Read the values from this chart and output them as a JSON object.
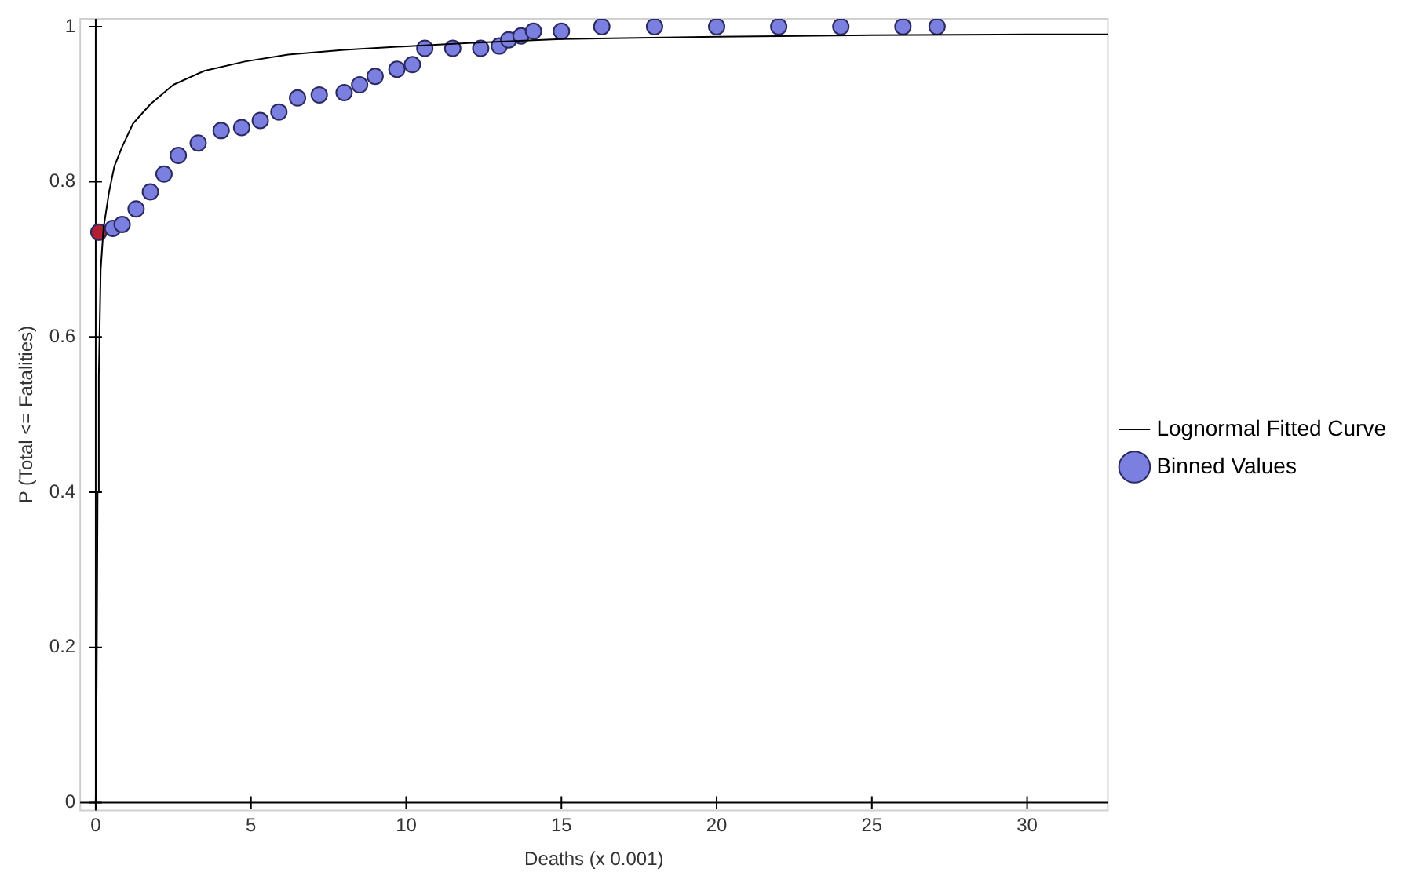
{
  "chart_data": {
    "type": "scatter",
    "xlabel": "Deaths (x 0.001)",
    "ylabel": "P (Total <= Fatalities)",
    "xlim": [
      -0.5,
      32.6
    ],
    "ylim": [
      -0.01,
      1.01
    ],
    "xticks": [
      0,
      5,
      10,
      15,
      20,
      25,
      30
    ],
    "yticks": [
      0,
      0.2,
      0.4,
      0.6,
      0.8,
      1
    ],
    "legend": "right",
    "series": [
      {
        "name": "Lognormal Fitted Curve",
        "type": "line",
        "color": "#000000",
        "marker": "none",
        "x": [
          0,
          0.03,
          0.06,
          0.1,
          0.16,
          0.25,
          0.43,
          0.6,
          0.85,
          1.2,
          1.76,
          2.5,
          3.5,
          4.8,
          6.2,
          8,
          9.7,
          12,
          15,
          20,
          25,
          30,
          32.6
        ],
        "values": [
          0,
          0.15,
          0.4,
          0.55,
          0.687,
          0.74,
          0.787,
          0.82,
          0.845,
          0.875,
          0.9,
          0.925,
          0.943,
          0.955,
          0.964,
          0.97,
          0.974,
          0.979,
          0.984,
          0.987,
          0.989,
          0.99,
          0.99
        ]
      },
      {
        "name": "Binned Values",
        "color": "#7b7fe0",
        "marker": "circle",
        "x": [
          0.1,
          0.55,
          0.85,
          1.3,
          1.76,
          2.2,
          2.66,
          3.3,
          4.04,
          4.7,
          5.3,
          5.9,
          6.5,
          7.2,
          8.0,
          8.5,
          9.0,
          9.7,
          10.2,
          10.6,
          11.5,
          12.4,
          13.0,
          13.3,
          13.7,
          14.1,
          15,
          16.3,
          18,
          20,
          22,
          24,
          26,
          27.1
        ],
        "values": [
          0.735,
          0.74,
          0.745,
          0.765,
          0.787,
          0.81,
          0.834,
          0.85,
          0.866,
          0.87,
          0.879,
          0.89,
          0.908,
          0.912,
          0.915,
          0.925,
          0.936,
          0.945,
          0.951,
          0.972,
          0.972,
          0.972,
          0.975,
          0.983,
          0.988,
          0.994,
          0.994,
          1.0,
          1.0,
          1.0,
          1.0,
          1.0,
          1.0,
          1.0
        ],
        "colors": [
          "#b02030",
          "#7b7fe0",
          "#7b7fe0",
          "#7b7fe0",
          "#7b7fe0",
          "#7b7fe0",
          "#7b7fe0",
          "#7b7fe0",
          "#7b7fe0",
          "#7b7fe0",
          "#7b7fe0",
          "#7b7fe0",
          "#7b7fe0",
          "#7b7fe0",
          "#7b7fe0",
          "#7b7fe0",
          "#7b7fe0",
          "#7b7fe0",
          "#7b7fe0",
          "#7b7fe0",
          "#7b7fe0",
          "#7b7fe0",
          "#7b7fe0",
          "#7b7fe0",
          "#7b7fe0",
          "#7b7fe0",
          "#7b7fe0",
          "#7b7fe0",
          "#7b7fe0",
          "#7b7fe0",
          "#7b7fe0",
          "#7b7fe0",
          "#7b7fe0",
          "#7b7fe0"
        ]
      }
    ]
  }
}
